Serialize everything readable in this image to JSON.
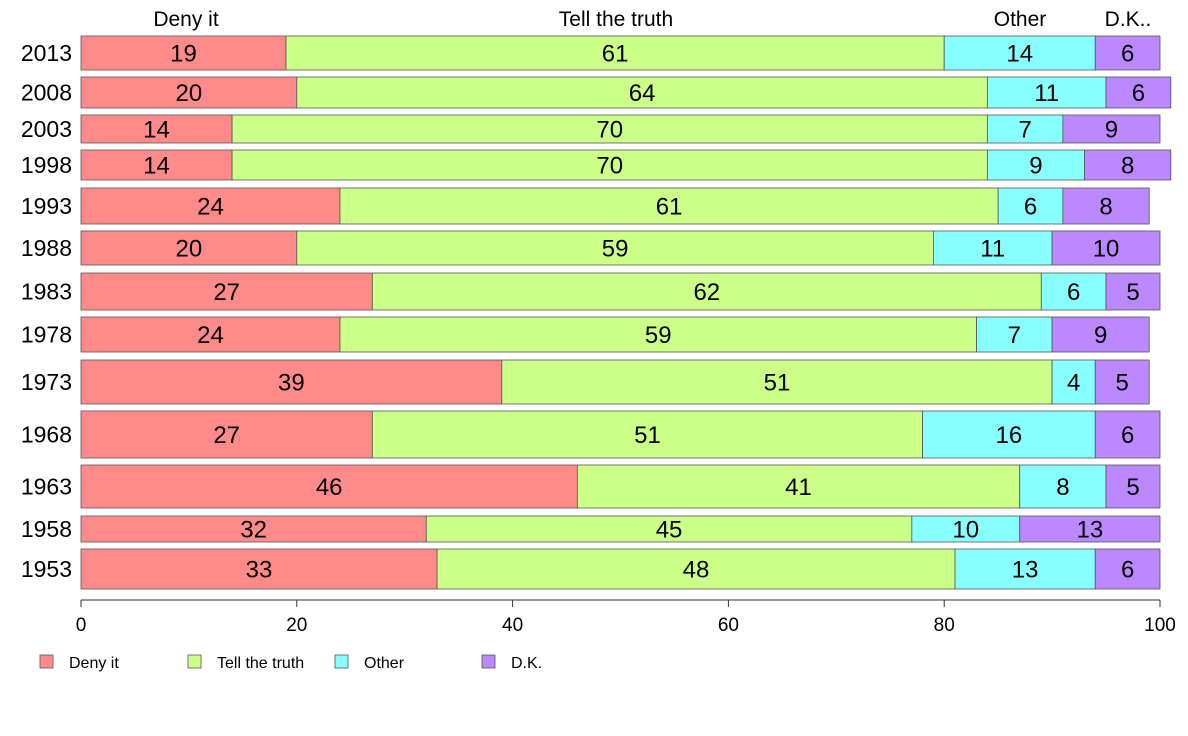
{
  "chart_data": {
    "type": "bar",
    "orientation": "horizontal",
    "stacked": true,
    "column_headers": [
      "Deny it",
      "Tell the truth",
      "Other",
      "D.K.."
    ],
    "categories": [
      "2013",
      "2008",
      "2003",
      "1998",
      "1993",
      "1988",
      "1983",
      "1978",
      "1973",
      "1968",
      "1963",
      "1958",
      "1953"
    ],
    "series": [
      {
        "name": "Deny it",
        "color": "#ff8a8a",
        "values": [
          19,
          20,
          14,
          14,
          24,
          20,
          27,
          24,
          39,
          27,
          46,
          32,
          33
        ]
      },
      {
        "name": "Tell the truth",
        "color": "#ccff88",
        "values": [
          61,
          64,
          70,
          70,
          61,
          59,
          62,
          59,
          51,
          51,
          41,
          45,
          48
        ]
      },
      {
        "name": "Other",
        "color": "#88ffff",
        "values": [
          14,
          11,
          7,
          9,
          6,
          11,
          6,
          7,
          4,
          16,
          8,
          10,
          13
        ]
      },
      {
        "name": "D.K.",
        "color": "#bb88ff",
        "values": [
          6,
          6,
          9,
          8,
          8,
          10,
          5,
          9,
          5,
          6,
          5,
          13,
          6
        ]
      }
    ],
    "xlim": [
      0,
      100
    ],
    "xticks": [
      0,
      20,
      40,
      60,
      80,
      100
    ],
    "grid": false,
    "legend_position": "bottom-left",
    "title": "",
    "xlabel": "",
    "ylabel": ""
  }
}
